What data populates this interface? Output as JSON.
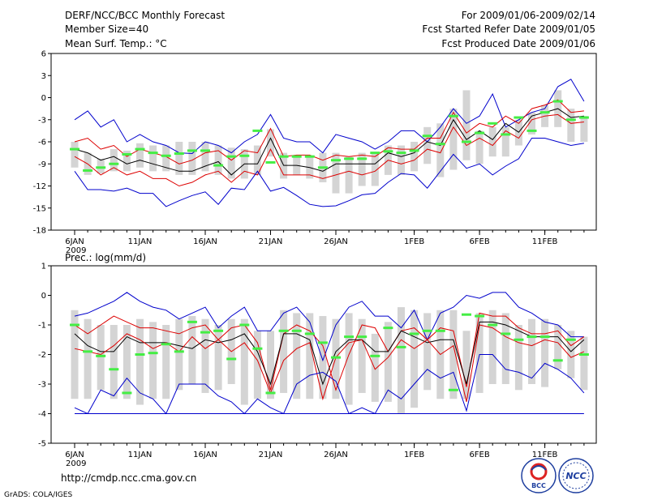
{
  "header": {
    "title": "DERF/NCC/BCC Monthly Forecast",
    "member": "Member Size=40",
    "variable": "Mean Surf. Temp.: °C",
    "period": "For 2009/01/06-2009/02/14",
    "started": "Fcst Started Refer Date 2009/01/05",
    "produced": "Fcst Produced Date 2009/01/06"
  },
  "footer": {
    "url": "http://cmdp.ncc.cma.gov.cn",
    "grads": "GrADS: COLA/IGES",
    "logo1_text": "BCC",
    "logo2_text": "NCC"
  },
  "colors": {
    "envelope": "#0000cc",
    "band": "#dd0000",
    "mean": "#000000",
    "bar": "#d4d4d4",
    "marker": "#44ee44"
  },
  "chart_data": [
    {
      "type": "line",
      "title": "Mean Surf. Temp.: °C",
      "xlabel": "",
      "ylabel": "°C",
      "ylim": [
        -18,
        6
      ],
      "yticks": [
        6,
        3,
        0,
        -3,
        -6,
        -9,
        -12,
        -15,
        -18
      ],
      "x": [
        1,
        2,
        3,
        4,
        5,
        6,
        7,
        8,
        9,
        10,
        11,
        12,
        13,
        14,
        15,
        16,
        17,
        18,
        19,
        20,
        21,
        22,
        23,
        24,
        25,
        26,
        27,
        28,
        29,
        30,
        31,
        32,
        33,
        34,
        35,
        36,
        37,
        38,
        39,
        40
      ],
      "xticks": [
        {
          "day": 1,
          "label": "6JAN",
          "sub": "2009"
        },
        {
          "day": 6,
          "label": "11JAN"
        },
        {
          "day": 11,
          "label": "16JAN"
        },
        {
          "day": 16,
          "label": "21JAN"
        },
        {
          "day": 21,
          "label": "26JAN"
        },
        {
          "day": 27,
          "label": "1FEB"
        },
        {
          "day": 32,
          "label": "6FEB"
        },
        {
          "day": 37,
          "label": "11FEB"
        }
      ],
      "series": [
        {
          "name": "max",
          "values": [
            -3,
            -1.8,
            -4,
            -3,
            -6,
            -5,
            -6,
            -6.5,
            -7.5,
            -7.6,
            -6,
            -6.5,
            -7.5,
            -6,
            -5,
            -2.3,
            -5.5,
            -6,
            -6,
            -7.5,
            -5,
            -5.5,
            -6,
            -7,
            -6,
            -4.5,
            -4.5,
            -6,
            -4,
            -1.5,
            -3.5,
            -2.5,
            0.5,
            -4,
            -3,
            -2,
            -1.5,
            1.5,
            2.5,
            -0.5
          ]
        },
        {
          "name": "upper",
          "values": [
            -6,
            -5.5,
            -7,
            -6.5,
            -8,
            -7,
            -7.5,
            -8,
            -9,
            -8.5,
            -7.5,
            -7.2,
            -8.5,
            -7.2,
            -7.5,
            -4.2,
            -8,
            -7.8,
            -7.8,
            -8.5,
            -7.8,
            -8,
            -7.8,
            -8,
            -6.8,
            -7,
            -7,
            -5.5,
            -5.5,
            -2,
            -4.8,
            -3.5,
            -4,
            -2.5,
            -3.5,
            -1.5,
            -1,
            -0.3,
            -2,
            -1.8
          ]
        },
        {
          "name": "mean",
          "values": [
            -7,
            -7.5,
            -8.5,
            -8,
            -9,
            -8.5,
            -9,
            -9.5,
            -10,
            -10,
            -9.3,
            -8.7,
            -10.5,
            -9,
            -9,
            -5.5,
            -9.2,
            -9.2,
            -9.5,
            -10,
            -9,
            -9,
            -9,
            -9,
            -7.5,
            -8,
            -7.5,
            -6,
            -6.5,
            -3,
            -5.7,
            -4.5,
            -5.7,
            -3.5,
            -4.7,
            -2.5,
            -2,
            -1.5,
            -2.7,
            -2.5
          ]
        },
        {
          "name": "lower",
          "values": [
            -8,
            -9,
            -10.5,
            -9.5,
            -10.5,
            -10,
            -11,
            -11,
            -12,
            -11.5,
            -10.5,
            -10,
            -11.5,
            -10,
            -10.5,
            -7,
            -10.5,
            -10.5,
            -10.5,
            -11,
            -10.5,
            -10,
            -10.5,
            -10,
            -8.5,
            -9,
            -8.5,
            -7,
            -7.5,
            -4,
            -6.5,
            -5.5,
            -6.5,
            -4.5,
            -5.5,
            -3,
            -2.5,
            -2.3,
            -3.5,
            -3.3
          ]
        },
        {
          "name": "min",
          "values": [
            -10,
            -12.5,
            -12.5,
            -12.7,
            -12.3,
            -13,
            -13,
            -14.8,
            -14,
            -13.3,
            -12.8,
            -14.5,
            -12.3,
            -12.5,
            -10,
            -12.7,
            -12.2,
            -13.3,
            -14.5,
            -14.8,
            -14.7,
            -14,
            -13.2,
            -13,
            -11.5,
            -10.3,
            -10.5,
            -12.3,
            -10,
            -7.7,
            -9.6,
            -9,
            -10.5,
            -9.3,
            -8.3,
            -5.5,
            -5.5,
            -6,
            -6.5,
            -6.2
          ]
        }
      ],
      "ranges": [
        [
          -9.5,
          -6
        ],
        [
          -10.5,
          -7.5
        ],
        [
          -10.3,
          -8.3
        ],
        [
          -10,
          -7
        ],
        [
          -10,
          -7.2
        ],
        [
          -9.5,
          -6.2
        ],
        [
          -10,
          -6.5
        ],
        [
          -10,
          -6.5
        ],
        [
          -10.5,
          -6
        ],
        [
          -10.5,
          -6
        ],
        [
          -10,
          -6
        ],
        [
          -10.5,
          -6.5
        ],
        [
          -11,
          -6.8
        ],
        [
          -11,
          -7
        ],
        [
          -10.5,
          -6.5
        ],
        [
          -8,
          -4.3
        ],
        [
          -11,
          -7.5
        ],
        [
          -10.5,
          -8
        ],
        [
          -11,
          -8
        ],
        [
          -11.5,
          -7.5
        ],
        [
          -13,
          -7.5
        ],
        [
          -13,
          -8
        ],
        [
          -12,
          -7.5
        ],
        [
          -12,
          -7.5
        ],
        [
          -10.5,
          -6.5
        ],
        [
          -10.5,
          -6.5
        ],
        [
          -10,
          -6
        ],
        [
          -9,
          -4
        ],
        [
          -10.8,
          -3.5
        ],
        [
          -9.8,
          -1.5
        ],
        [
          -8.5,
          1
        ],
        [
          -9,
          -4.5
        ],
        [
          -8,
          -4
        ],
        [
          -8,
          -4
        ],
        [
          -6.5,
          -3
        ],
        [
          -5,
          -2
        ],
        [
          -4,
          -1
        ],
        [
          -4,
          1
        ],
        [
          -6,
          -1.5
        ],
        [
          -6,
          -2.5
        ]
      ],
      "medians": [
        -7,
        -9.9,
        -9.5,
        -9,
        -7.7,
        -7,
        -7.5,
        -7.9,
        -7.6,
        -7.2,
        -7.2,
        -9.2,
        -8,
        -7.9,
        -4.5,
        -8.8,
        -8,
        -8,
        -8,
        -9.5,
        -8.5,
        -8.3,
        -8.3,
        -7.5,
        -7.3,
        -7.5,
        -7.2,
        -5.2,
        -6.3,
        -2.5,
        -6,
        -4.8,
        -3.5,
        -5,
        -2.7,
        -4.5,
        -2,
        -0.5,
        -3,
        -2.7
      ]
    },
    {
      "type": "line",
      "title": "Prec.: log(mm/d)",
      "xlabel": "",
      "ylabel": "log(mm/d)",
      "ylim": [
        -5,
        1
      ],
      "yticks": [
        1,
        0,
        -1,
        -2,
        -3,
        -4,
        -5
      ],
      "baseline": -4,
      "x": [
        1,
        2,
        3,
        4,
        5,
        6,
        7,
        8,
        9,
        10,
        11,
        12,
        13,
        14,
        15,
        16,
        17,
        18,
        19,
        20,
        21,
        22,
        23,
        24,
        25,
        26,
        27,
        28,
        29,
        30,
        31,
        32,
        33,
        34,
        35,
        36,
        37,
        38,
        39,
        40
      ],
      "xticks": [
        {
          "day": 1,
          "label": "6JAN",
          "sub": "2009"
        },
        {
          "day": 6,
          "label": "11JAN"
        },
        {
          "day": 11,
          "label": "16JAN"
        },
        {
          "day": 16,
          "label": "21JAN"
        },
        {
          "day": 21,
          "label": "26JAN"
        },
        {
          "day": 27,
          "label": "1FEB"
        },
        {
          "day": 32,
          "label": "6FEB"
        },
        {
          "day": 37,
          "label": "11FEB"
        }
      ],
      "series": [
        {
          "name": "max",
          "values": [
            -0.7,
            -0.6,
            -0.4,
            -0.2,
            0.1,
            -0.2,
            -0.4,
            -0.5,
            -0.8,
            -0.6,
            -0.4,
            -1.1,
            -0.7,
            -0.4,
            -1.2,
            -1.2,
            -0.6,
            -0.4,
            -0.9,
            -2.2,
            -1,
            -0.4,
            -0.2,
            -0.7,
            -0.7,
            -1.1,
            -0.5,
            -1.5,
            -0.6,
            -0.4,
            0,
            -0.1,
            0.1,
            0.1,
            -0.4,
            -0.6,
            -0.9,
            -1.0,
            -1.4,
            -1.4
          ]
        },
        {
          "name": "upper",
          "values": [
            -1.0,
            -1.3,
            -1.0,
            -0.7,
            -0.9,
            -1.1,
            -1.1,
            -1.2,
            -1.3,
            -1.1,
            -1.0,
            -1.5,
            -1.1,
            -1.0,
            -1.6,
            -3.2,
            -1.3,
            -1.0,
            -1.2,
            -1.7,
            -3.2,
            -2.0,
            -1.0,
            -1.1,
            -1.9,
            -1.2,
            -1.1,
            -1.5,
            -1.1,
            -1.2,
            -3.1,
            -0.6,
            -0.7,
            -0.7,
            -1.1,
            -1.3,
            -1.3,
            -1.2,
            -1.7,
            -1.4
          ]
        },
        {
          "name": "mean",
          "values": [
            -1.3,
            -1.7,
            -1.9,
            -1.9,
            -1.4,
            -1.6,
            -1.6,
            -1.6,
            -1.7,
            -1.8,
            -1.5,
            -1.6,
            -1.5,
            -1.3,
            -1.9,
            -3.0,
            -1.3,
            -1.3,
            -1.5,
            -3.0,
            -1.9,
            -1.5,
            -1.5,
            -1.9,
            -1.9,
            -1.2,
            -1.4,
            -1.6,
            -1.5,
            -1.5,
            -3.0,
            -0.9,
            -0.9,
            -1.0,
            -1.2,
            -1.4,
            -1.4,
            -1.4,
            -1.9,
            -1.5
          ]
        },
        {
          "name": "lower",
          "values": [
            -1.8,
            -1.9,
            -2.0,
            -1.7,
            -1.3,
            -1.5,
            -1.8,
            -1.6,
            -1.9,
            -1.4,
            -1.8,
            -1.5,
            -1.9,
            -1.6,
            -2.2,
            -3.3,
            -2.2,
            -1.8,
            -1.6,
            -3.5,
            -2.1,
            -1.6,
            -1.5,
            -2.5,
            -2.1,
            -1.5,
            -1.8,
            -1.5,
            -2.0,
            -1.7,
            -3.6,
            -1.0,
            -1.1,
            -1.4,
            -1.6,
            -1.7,
            -1.5,
            -1.6,
            -2.1,
            -1.9
          ]
        },
        {
          "name": "min",
          "values": [
            -3.8,
            -4,
            -3.2,
            -3.4,
            -2.8,
            -3.3,
            -3.5,
            -4,
            -3,
            -3,
            -3,
            -3.4,
            -3.6,
            -4,
            -3.5,
            -3.8,
            -4,
            -3,
            -2.7,
            -2.6,
            -2.9,
            -4,
            -3.8,
            -4,
            -3.2,
            -3.5,
            -3,
            -2.5,
            -2.8,
            -2.6,
            -3.9,
            -2,
            -2,
            -2.5,
            -2.6,
            -2.8,
            -2.3,
            -2.5,
            -2.8,
            -3.3
          ]
        }
      ],
      "ranges": [
        [
          -3.5,
          -0.5
        ],
        [
          -3.5,
          -0.8
        ],
        [
          -3.2,
          -1.0
        ],
        [
          -3.5,
          -1.0
        ],
        [
          -3.5,
          -1.0
        ],
        [
          -3.7,
          -0.8
        ],
        [
          -3.5,
          -0.9
        ],
        [
          -3.5,
          -1.0
        ],
        [
          -3.2,
          -0.8
        ],
        [
          -3.0,
          -0.7
        ],
        [
          -3.3,
          -0.8
        ],
        [
          -3.2,
          -1.0
        ],
        [
          -3.0,
          -0.8
        ],
        [
          -3.7,
          -0.8
        ],
        [
          -3.5,
          -1.2
        ],
        [
          -3.5,
          -1.2
        ],
        [
          -3.3,
          -0.5
        ],
        [
          -3.5,
          -0.6
        ],
        [
          -3.5,
          -0.6
        ],
        [
          -3.5,
          -0.7
        ],
        [
          -3.5,
          -0.8
        ],
        [
          -3.7,
          -0.6
        ],
        [
          -3.3,
          -0.8
        ],
        [
          -3.6,
          -1.3
        ],
        [
          -3.6,
          -0.9
        ],
        [
          -4.0,
          -0.4
        ],
        [
          -3.8,
          -0.5
        ],
        [
          -3.2,
          -0.6
        ],
        [
          -3.5,
          -0.5
        ],
        [
          -3.5,
          -0.5
        ],
        [
          -3.5,
          -1.2
        ],
        [
          -3.3,
          -0.6
        ],
        [
          -3.0,
          -0.5
        ],
        [
          -3.0,
          -0.6
        ],
        [
          -3.2,
          -1.0
        ],
        [
          -3.0,
          -0.8
        ],
        [
          -3.1,
          -0.8
        ],
        [
          -2.5,
          -1.0
        ],
        [
          -2.8,
          -1.2
        ],
        [
          -3.2,
          -1.4
        ]
      ],
      "medians": [
        -1.0,
        -1.9,
        -2.05,
        -2.5,
        -3.3,
        -2.0,
        -1.95,
        -1.65,
        -1.9,
        -0.9,
        -1.25,
        -1.2,
        -2.15,
        -1.0,
        -1.8,
        -3.3,
        -1.2,
        -1.2,
        -1.3,
        -1.6,
        -2.1,
        -1.4,
        -1.4,
        -2.05,
        -1.1,
        -1.75,
        -1.3,
        -1.2,
        -1.2,
        -3.2,
        -0.65,
        -0.7,
        -1.0,
        -1.3,
        -1.5,
        -1.4,
        -1.4,
        -2.2,
        -1.5,
        -2.0
      ]
    }
  ]
}
